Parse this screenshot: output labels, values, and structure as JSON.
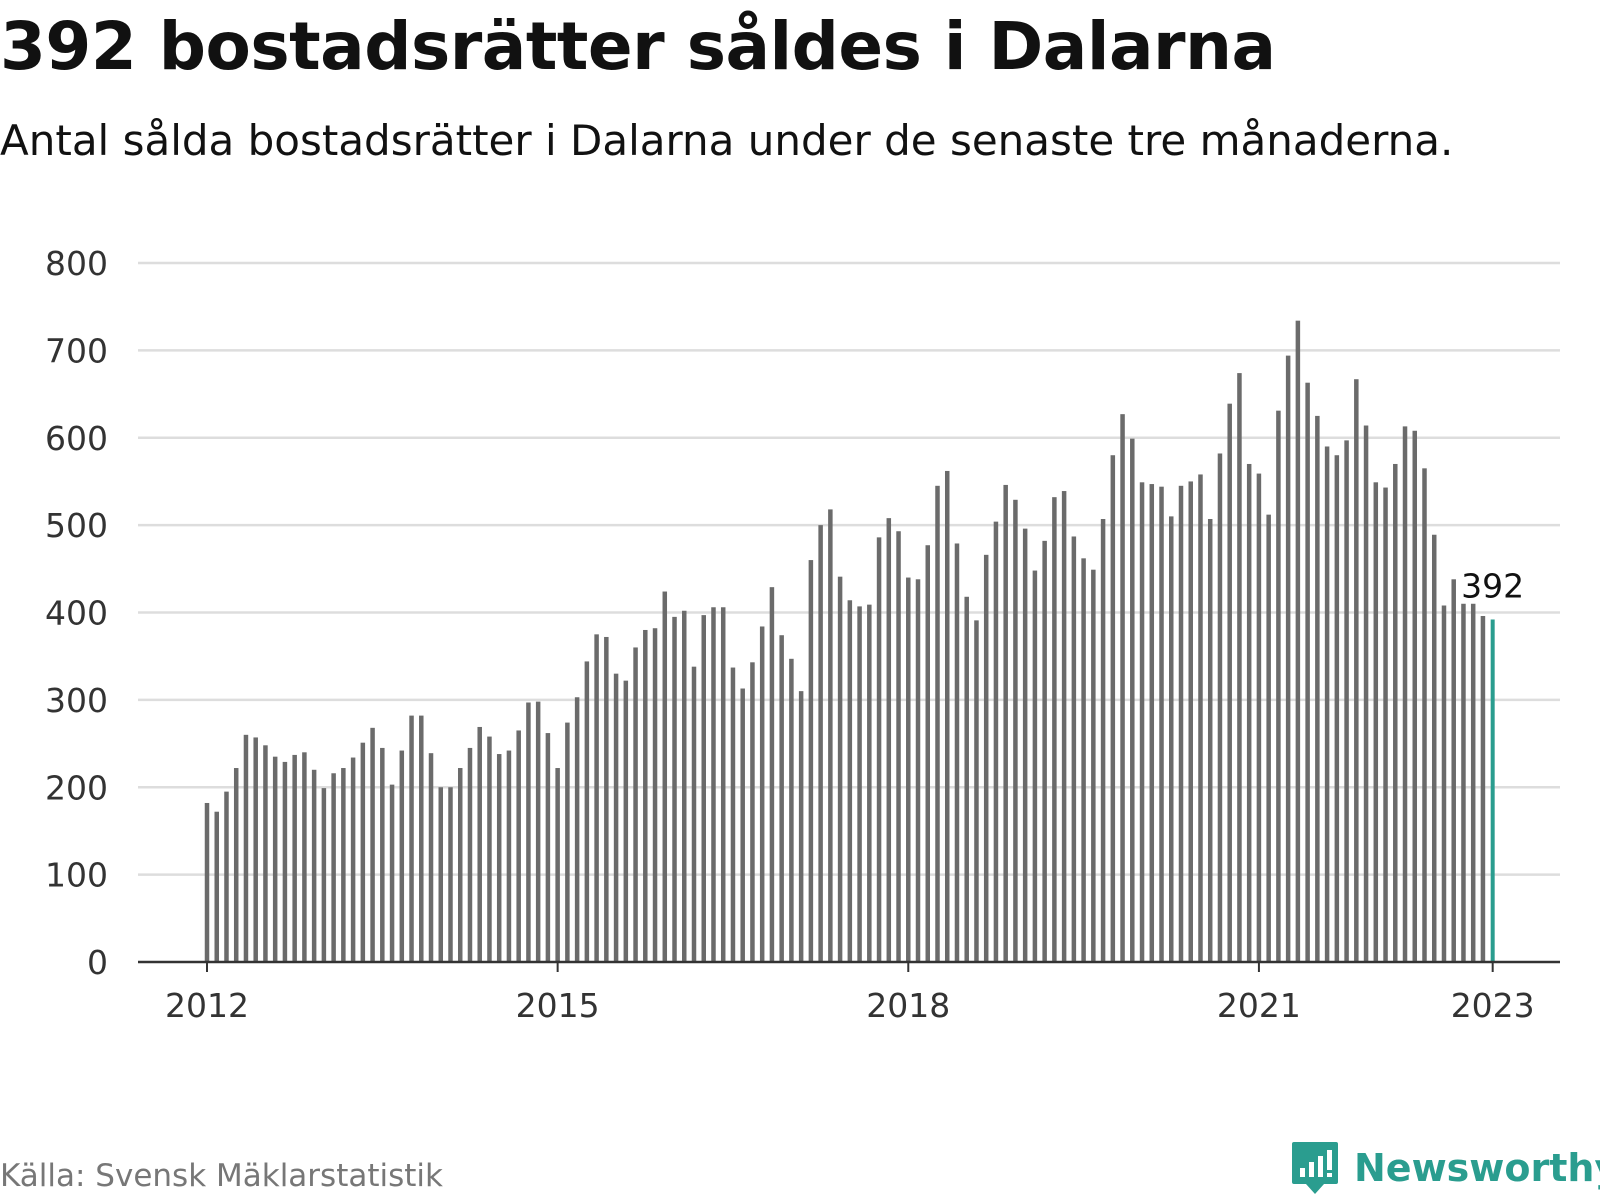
{
  "header": {
    "title": "392 bostadsrätter såldes i Dalarna",
    "subtitle": "Antal sålda bostadsrätter i Dalarna under de senaste tre månaderna."
  },
  "footer": {
    "source": "Källa: Svensk Mäklarstatistik",
    "brand": "Newsworthy",
    "brand_icon": "bar-chart-speech-bubble-icon"
  },
  "colors": {
    "bar": "#6b6b6b",
    "highlight": "#2a9d8f",
    "grid": "#dddddd",
    "axis": "#333333",
    "brand": "#2a9d8f"
  },
  "chart_data": {
    "type": "bar",
    "title": "392 bostadsrätter såldes i Dalarna",
    "subtitle": "Antal sålda bostadsrätter i Dalarna under de senaste tre månaderna.",
    "xlabel": "",
    "ylabel": "",
    "ylim": [
      0,
      800
    ],
    "yticks": [
      "0",
      "100",
      "200",
      "300",
      "400",
      "500",
      "600",
      "700",
      "800"
    ],
    "xtick_labels": [
      {
        "label": "2012",
        "x": "2012-01"
      },
      {
        "label": "2015",
        "x": "2015-01"
      },
      {
        "label": "2018",
        "x": "2018-01"
      },
      {
        "label": "2021",
        "x": "2021-01"
      },
      {
        "label": "2023",
        "x": "2023-01"
      }
    ],
    "grid": true,
    "legend": "none",
    "highlight_label": "392",
    "x": [
      "2012-01",
      "2012-02",
      "2012-03",
      "2012-04",
      "2012-05",
      "2012-06",
      "2012-07",
      "2012-08",
      "2012-09",
      "2012-10",
      "2012-11",
      "2012-12",
      "2013-01",
      "2013-02",
      "2013-03",
      "2013-04",
      "2013-05",
      "2013-06",
      "2013-07",
      "2013-08",
      "2013-09",
      "2013-10",
      "2013-11",
      "2013-12",
      "2014-01",
      "2014-02",
      "2014-03",
      "2014-04",
      "2014-05",
      "2014-06",
      "2014-07",
      "2014-08",
      "2014-09",
      "2014-10",
      "2014-11",
      "2014-12",
      "2015-01",
      "2015-02",
      "2015-03",
      "2015-04",
      "2015-05",
      "2015-06",
      "2015-07",
      "2015-08",
      "2015-09",
      "2015-10",
      "2015-11",
      "2015-12",
      "2016-01",
      "2016-02",
      "2016-03",
      "2016-04",
      "2016-05",
      "2016-06",
      "2016-07",
      "2016-08",
      "2016-09",
      "2016-10",
      "2016-11",
      "2016-12",
      "2017-01",
      "2017-02",
      "2017-03",
      "2017-04",
      "2017-05",
      "2017-06",
      "2017-07",
      "2017-08",
      "2017-09",
      "2017-10",
      "2017-11",
      "2017-12",
      "2018-01",
      "2018-02",
      "2018-03",
      "2018-04",
      "2018-05",
      "2018-06",
      "2018-07",
      "2018-08",
      "2018-09",
      "2018-10",
      "2018-11",
      "2018-12",
      "2019-01",
      "2019-02",
      "2019-03",
      "2019-04",
      "2019-05",
      "2019-06",
      "2019-07",
      "2019-08",
      "2019-09",
      "2019-10",
      "2019-11",
      "2019-12",
      "2020-01",
      "2020-02",
      "2020-03",
      "2020-04",
      "2020-05",
      "2020-06",
      "2020-07",
      "2020-08",
      "2020-09",
      "2020-10",
      "2020-11",
      "2020-12",
      "2021-01",
      "2021-02",
      "2021-03",
      "2021-04",
      "2021-05",
      "2021-06",
      "2021-07",
      "2021-08",
      "2021-09",
      "2021-10",
      "2021-11",
      "2021-12",
      "2022-01",
      "2022-02",
      "2022-03",
      "2022-04",
      "2022-05",
      "2022-06",
      "2022-07",
      "2022-08",
      "2022-09",
      "2022-10",
      "2022-11",
      "2022-12",
      "2023-01"
    ],
    "values": [
      182,
      172,
      195,
      222,
      260,
      257,
      248,
      235,
      229,
      237,
      240,
      220,
      199,
      216,
      222,
      234,
      251,
      268,
      245,
      203,
      242,
      282,
      282,
      239,
      200,
      200,
      222,
      245,
      269,
      258,
      238,
      242,
      265,
      297,
      298,
      262,
      222,
      274,
      303,
      344,
      375,
      372,
      330,
      322,
      360,
      380,
      382,
      424,
      395,
      402,
      338,
      397,
      406,
      406,
      337,
      313,
      343,
      384,
      429,
      374,
      347,
      310,
      460,
      500,
      518,
      441,
      414,
      407,
      409,
      486,
      508,
      493,
      440,
      438,
      477,
      545,
      562,
      479,
      418,
      391,
      466,
      504,
      546,
      529,
      496,
      448,
      482,
      532,
      539,
      487,
      462,
      449,
      507,
      580,
      627,
      599,
      549,
      547,
      544,
      510,
      545,
      550,
      558,
      507,
      582,
      639,
      674,
      570,
      559,
      512,
      631,
      694,
      734,
      663,
      625,
      590,
      580,
      597,
      667,
      614,
      549,
      543,
      570,
      613,
      608,
      565,
      489,
      408,
      438,
      410,
      410,
      396,
      392
    ]
  }
}
